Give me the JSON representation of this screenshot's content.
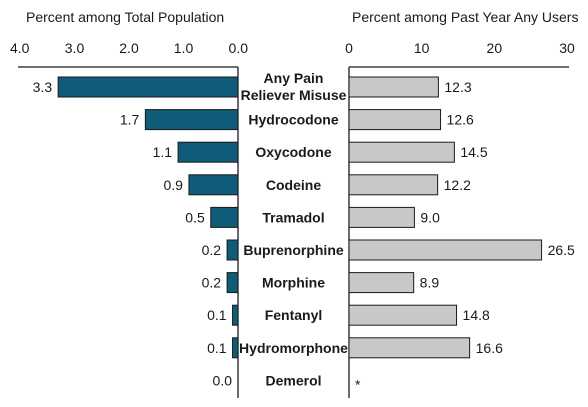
{
  "chart_data": [
    {
      "type": "bar",
      "orientation": "horizontal",
      "direction": "right-to-left",
      "title": "Percent among Total Population",
      "categories": [
        "Any Pain Reliever Misuse",
        "Hydrocodone",
        "Oxycodone",
        "Codeine",
        "Tramadol",
        "Buprenorphine",
        "Morphine",
        "Fentanyl",
        "Hydromorphone",
        "Demerol"
      ],
      "values": [
        3.3,
        1.7,
        1.1,
        0.9,
        0.5,
        0.2,
        0.2,
        0.1,
        0.1,
        0.0
      ],
      "labels": [
        "3.3",
        "1.7",
        "1.1",
        "0.9",
        "0.5",
        "0.2",
        "0.2",
        "0.1",
        "0.1",
        "0.0"
      ],
      "xlim": [
        0,
        4.0
      ],
      "ticks": [
        "4.0",
        "3.0",
        "2.0",
        "1.0",
        "0.0"
      ],
      "tick_values": [
        4.0,
        3.0,
        2.0,
        1.0,
        0.0
      ],
      "grid": false,
      "color": "#0e5c78"
    },
    {
      "type": "bar",
      "orientation": "horizontal",
      "direction": "left-to-right",
      "title": "Percent among Past Year Any Users",
      "categories": [
        "Any Pain Reliever Misuse",
        "Hydrocodone",
        "Oxycodone",
        "Codeine",
        "Tramadol",
        "Buprenorphine",
        "Morphine",
        "Fentanyl",
        "Hydromorphone",
        "Demerol"
      ],
      "values": [
        12.3,
        12.6,
        14.5,
        12.2,
        9.0,
        26.5,
        8.9,
        14.8,
        16.6,
        null
      ],
      "labels": [
        "12.3",
        "12.6",
        "14.5",
        "12.2",
        "9.0",
        "26.5",
        "8.9",
        "14.8",
        "16.6",
        "*"
      ],
      "xlim": [
        0,
        30
      ],
      "ticks": [
        "0",
        "10",
        "20",
        "30"
      ],
      "tick_values": [
        0,
        10,
        20,
        30
      ],
      "grid": false,
      "color": "#c8c8c8"
    }
  ],
  "category_labels": [
    [
      "Any Pain",
      "Reliever Misuse"
    ],
    [
      "Hydrocodone"
    ],
    [
      "Oxycodone"
    ],
    [
      "Codeine"
    ],
    [
      "Tramadol"
    ],
    [
      "Buprenorphine"
    ],
    [
      "Morphine"
    ],
    [
      "Fentanyl"
    ],
    [
      "Hydromorphone"
    ],
    [
      "Demerol"
    ]
  ],
  "colors": {
    "left_bar": "#0e5c78",
    "right_bar": "#c8c8c8",
    "bar_outline": "#1a1a1a"
  }
}
